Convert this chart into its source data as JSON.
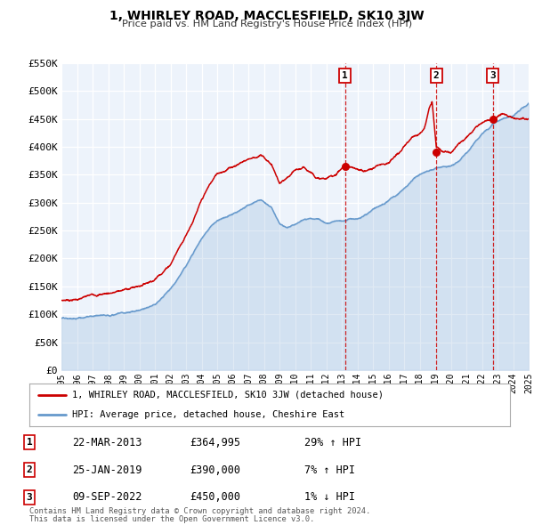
{
  "title": "1, WHIRLEY ROAD, MACCLESFIELD, SK10 3JW",
  "subtitle": "Price paid vs. HM Land Registry's House Price Index (HPI)",
  "legend_label_red": "1, WHIRLEY ROAD, MACCLESFIELD, SK10 3JW (detached house)",
  "legend_label_blue": "HPI: Average price, detached house, Cheshire East",
  "footnote1": "Contains HM Land Registry data © Crown copyright and database right 2024.",
  "footnote2": "This data is licensed under the Open Government Licence v3.0.",
  "sale_years": [
    2013.22,
    2019.07,
    2022.69
  ],
  "sale_values": [
    364995,
    390000,
    450000
  ],
  "sale_labels": [
    "1",
    "2",
    "3"
  ],
  "table_rows": [
    [
      "1",
      "22-MAR-2013",
      "£364,995",
      "29% ↑ HPI"
    ],
    [
      "2",
      "25-JAN-2019",
      "£390,000",
      "7% ↑ HPI"
    ],
    [
      "3",
      "09-SEP-2022",
      "£450,000",
      "1% ↓ HPI"
    ]
  ],
  "yticks": [
    0,
    50000,
    100000,
    150000,
    200000,
    250000,
    300000,
    350000,
    400000,
    450000,
    500000,
    550000
  ],
  "ytick_labels": [
    "£0",
    "£50K",
    "£100K",
    "£150K",
    "£200K",
    "£250K",
    "£300K",
    "£350K",
    "£400K",
    "£450K",
    "£500K",
    "£550K"
  ],
  "red_color": "#cc0000",
  "blue_color": "#6699cc",
  "bg_plot": "#edf3fb",
  "bg_figure": "#ffffff",
  "grid_color": "#ffffff"
}
